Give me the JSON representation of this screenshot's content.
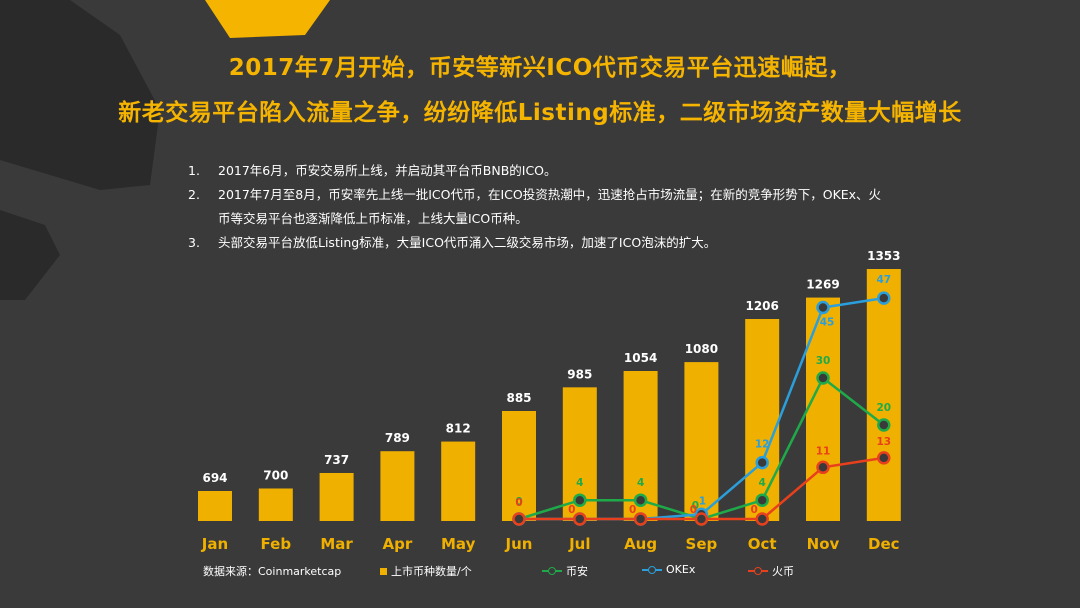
{
  "title": {
    "line1": "2017年7月开始，币安等新兴ICO代币交易平台迅速崛起，",
    "line2": "新老交易平台陷入流量之争，纷纷降低Listing标准，二级市场资产数量大幅增长"
  },
  "notes": [
    {
      "num": "1.",
      "text": "2017年6月，币安交易所上线，并启动其平台币BNB的ICO。"
    },
    {
      "num": "2.",
      "text": "2017年7月至8月，币安率先上线一批ICO代币，在ICO投资热潮中，迅速抢占市场流量；在新的竞争形势下，OKEx、火币等交易平台也逐渐降低上币标准，上线大量ICO币种。"
    },
    {
      "num": "3.",
      "text": "头部交易平台放低Listing标准，大量ICO代币涌入二级交易市场，加速了ICO泡沫的扩大。"
    }
  ],
  "legend": {
    "source": "数据来源：Coinmarketcap",
    "bars": "上市币种数量/个",
    "binance": "币安",
    "okex": "OKEx",
    "huobi": "火币"
  },
  "colors": {
    "bar": "#f0b000",
    "binance": "#1faa4a",
    "okex": "#2a9fdc",
    "huobi": "#e8401c",
    "title": "#f5b400",
    "background": "#3b3a3a"
  },
  "chart_data": {
    "type": "bar",
    "categories": [
      "Jan",
      "Feb",
      "Mar",
      "Apr",
      "May",
      "Jun",
      "Jul",
      "Aug",
      "Sep",
      "Oct",
      "Nov",
      "Dec"
    ],
    "bar_series": {
      "name": "上市币种数量/个",
      "values": [
        694,
        700,
        737,
        789,
        812,
        885,
        985,
        1054,
        1080,
        1206,
        1269,
        1353
      ]
    },
    "line_series": [
      {
        "name": "币安",
        "start_index": 5,
        "values": [
          0,
          4,
          4,
          0,
          4,
          30,
          20
        ]
      },
      {
        "name": "OKEx",
        "start_index": 5,
        "values": [
          0,
          0,
          0,
          1,
          12,
          45,
          47
        ]
      },
      {
        "name": "火币",
        "start_index": 5,
        "values": [
          0,
          0,
          0,
          0,
          0,
          11,
          13
        ]
      }
    ],
    "line_labels": [
      {
        "series": "币安",
        "index": 5,
        "text": "0"
      },
      {
        "series": "币安",
        "index": 6,
        "text": "4"
      },
      {
        "series": "币安",
        "index": 7,
        "text": "4"
      },
      {
        "series": "币安",
        "index": 8,
        "text": "0"
      },
      {
        "series": "币安",
        "index": 9,
        "text": "4"
      },
      {
        "series": "币安",
        "index": 10,
        "text": "30"
      },
      {
        "series": "币安",
        "index": 11,
        "text": "20"
      },
      {
        "series": "OKEx",
        "index": 8,
        "text": "1"
      },
      {
        "series": "OKEx",
        "index": 9,
        "text": "12"
      },
      {
        "series": "OKEx",
        "index": 10,
        "text": "45"
      },
      {
        "series": "OKEx",
        "index": 11,
        "text": "47"
      },
      {
        "series": "火币",
        "index": 5,
        "text": "0"
      },
      {
        "series": "火币",
        "index": 6,
        "text": "0"
      },
      {
        "series": "火币",
        "index": 7,
        "text": "0"
      },
      {
        "series": "火币",
        "index": 8,
        "text": "0"
      },
      {
        "series": "火币",
        "index": 9,
        "text": "0"
      },
      {
        "series": "火币",
        "index": 10,
        "text": "11"
      },
      {
        "series": "火币",
        "index": 11,
        "text": "13"
      }
    ]
  }
}
